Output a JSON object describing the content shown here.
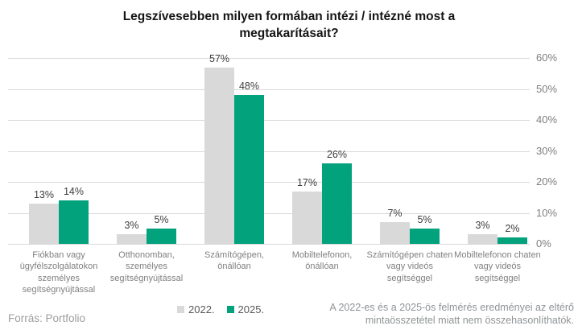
{
  "title": "Legszívesebben milyen formában intézi / intézné most a megtakarításait?",
  "source": "Forrás: Portfolio",
  "note": "A 2022-es és a 2025-ös felmérés eredményei az eltérő mintaösszetétel miatt nem összehasonlíthatók.",
  "colors": {
    "series_2022": "#d9d9d9",
    "series_2025": "#02a27c",
    "gridline": "#d9d9d9",
    "axis_text": "#7e7e7e",
    "value_text": "#3d3d3d",
    "title_text": "#151515"
  },
  "legend": [
    {
      "label": "2022.",
      "color": "#d9d9d9"
    },
    {
      "label": "2025.",
      "color": "#02a27c"
    }
  ],
  "chart_data": {
    "type": "bar",
    "title": "Legszívesebben milyen formában intézi / intézné most a megtakarításait?",
    "categories": [
      "Fiókban vagy ügyfélszolgálatokon személyes segítségnyújtással",
      "Otthonomban, személyes segítségnyújtással",
      "Számítógépen, önállóan",
      "Mobiltelefonon, önállóan",
      "Számítógépen chaten vagy videós segítséggel",
      "Mobiltelefonon chaten vagy videós segítséggel"
    ],
    "series": [
      {
        "name": "2022.",
        "color": "#d9d9d9",
        "values": [
          13,
          3,
          57,
          17,
          7,
          3
        ]
      },
      {
        "name": "2025.",
        "color": "#02a27c",
        "values": [
          14,
          5,
          48,
          26,
          5,
          2
        ]
      }
    ],
    "value_suffix": "%",
    "xlabel": "",
    "ylabel": "",
    "ylim": [
      0,
      60
    ],
    "ytick_step": 10,
    "yaxis_side": "right",
    "grid": true,
    "legend_position": "bottom"
  }
}
